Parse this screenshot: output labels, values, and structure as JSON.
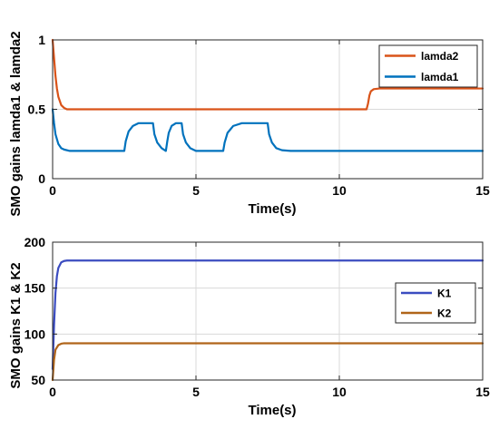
{
  "chart_data": [
    {
      "type": "line",
      "xlabel": "Time(s)",
      "ylabel": "SMO gains lamda1 & lamda2",
      "xlim": [
        0,
        15
      ],
      "ylim": [
        0,
        1
      ],
      "xticks": [
        0,
        5,
        10,
        15
      ],
      "xtick_labels": [
        "0",
        "5",
        "10",
        "15"
      ],
      "yticks": [
        0,
        0.5,
        1
      ],
      "ytick_labels": [
        "0",
        "0.5",
        "1"
      ],
      "grid": true,
      "legend_position": "top-right",
      "series": [
        {
          "name": "lamda2",
          "color": "#d95319",
          "x": [
            0,
            0.05,
            0.1,
            0.15,
            0.2,
            0.3,
            0.4,
            0.5,
            0.6,
            10.95,
            11.0,
            11.05,
            11.1,
            11.2,
            11.4,
            15
          ],
          "y": [
            1.0,
            0.87,
            0.74,
            0.65,
            0.59,
            0.53,
            0.51,
            0.5,
            0.5,
            0.5,
            0.54,
            0.6,
            0.63,
            0.645,
            0.65,
            0.65
          ]
        },
        {
          "name": "lamda1",
          "color": "#0072bd",
          "x": [
            0,
            0.05,
            0.1,
            0.2,
            0.3,
            0.4,
            0.6,
            2.5,
            2.55,
            2.65,
            2.8,
            3.0,
            3.2,
            3.5,
            3.55,
            3.65,
            3.8,
            3.95,
            4.0,
            4.05,
            4.15,
            4.3,
            4.5,
            4.55,
            4.65,
            4.8,
            5.0,
            5.95,
            6.0,
            6.1,
            6.3,
            6.6,
            6.9,
            7.5,
            7.55,
            7.65,
            7.8,
            8.0,
            8.3,
            15
          ],
          "y": [
            0.5,
            0.4,
            0.32,
            0.25,
            0.22,
            0.21,
            0.2,
            0.2,
            0.27,
            0.34,
            0.38,
            0.4,
            0.4,
            0.4,
            0.32,
            0.26,
            0.22,
            0.2,
            0.27,
            0.33,
            0.38,
            0.4,
            0.4,
            0.32,
            0.26,
            0.22,
            0.2,
            0.2,
            0.26,
            0.33,
            0.38,
            0.4,
            0.4,
            0.4,
            0.32,
            0.26,
            0.22,
            0.205,
            0.2,
            0.2
          ]
        }
      ]
    },
    {
      "type": "line",
      "xlabel": "Time(s)",
      "ylabel": "SMO gains K1 & K2",
      "xlim": [
        0,
        15
      ],
      "ylim": [
        50,
        200
      ],
      "xticks": [
        0,
        5,
        10,
        15
      ],
      "xtick_labels": [
        "0",
        "5",
        "10",
        "15"
      ],
      "yticks": [
        50,
        100,
        150,
        200
      ],
      "ytick_labels": [
        "50",
        "100",
        "150",
        "200"
      ],
      "grid": true,
      "legend_position": "center-right",
      "series": [
        {
          "name": "K1",
          "color": "#3b4cc0",
          "x": [
            0,
            0.05,
            0.1,
            0.15,
            0.2,
            0.3,
            0.4,
            0.5,
            0.6,
            15
          ],
          "y": [
            62,
            110,
            145,
            163,
            172,
            178,
            179.5,
            180,
            180,
            180
          ]
        },
        {
          "name": "K2",
          "color": "#b0651a",
          "x": [
            0,
            0.05,
            0.1,
            0.2,
            0.3,
            0.4,
            0.5,
            15
          ],
          "y": [
            50,
            72,
            83,
            88,
            89.5,
            90,
            90,
            90
          ]
        }
      ]
    }
  ]
}
